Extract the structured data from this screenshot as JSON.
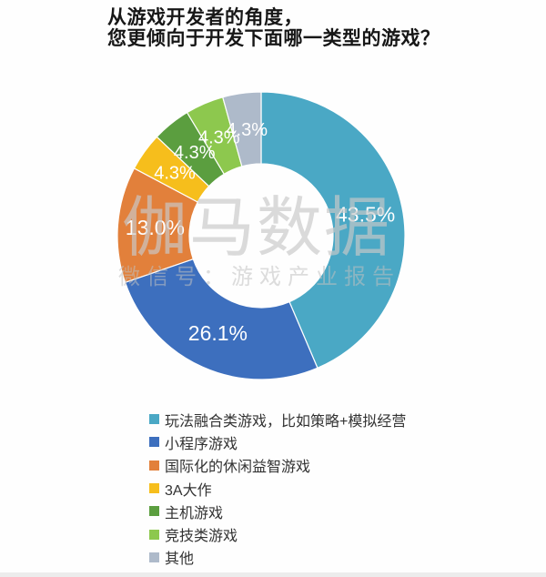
{
  "title": {
    "line1": "从游戏开发者的角度，",
    "line2": "您更倾向于开发下面哪一类型的游戏？"
  },
  "watermark": {
    "main": "伽马数据",
    "sub": "微信号：游戏产业报告"
  },
  "chart_data": {
    "type": "pie",
    "subtype": "donut",
    "title": "从游戏开发者的角度，您更倾向于开发下面哪一类型的游戏？",
    "direction": "clockwise",
    "start_angle_deg": 0,
    "legend_position": "bottom-left",
    "slices": [
      {
        "label": "玩法融合类游戏，比如策略+模拟经营",
        "value": 43.5,
        "pct_label": "43.5%",
        "color": "#4AA8C5"
      },
      {
        "label": "小程序游戏",
        "value": 26.1,
        "pct_label": "26.1%",
        "color": "#3D6FBE"
      },
      {
        "label": "国际化的休闲益智游戏",
        "value": 13.0,
        "pct_label": "13.0%",
        "color": "#E2803B"
      },
      {
        "label": "3A大作",
        "value": 4.3,
        "pct_label": "4.3%",
        "color": "#F6BE1C"
      },
      {
        "label": "主机游戏",
        "value": 4.3,
        "pct_label": "4.3%",
        "color": "#5B9E3F"
      },
      {
        "label": "竞技类游戏",
        "value": 4.3,
        "pct_label": "4.3%",
        "color": "#8DC84E"
      },
      {
        "label": "其他",
        "value": 4.3,
        "pct_label": "4.3%",
        "color": "#AEBACA"
      }
    ]
  }
}
